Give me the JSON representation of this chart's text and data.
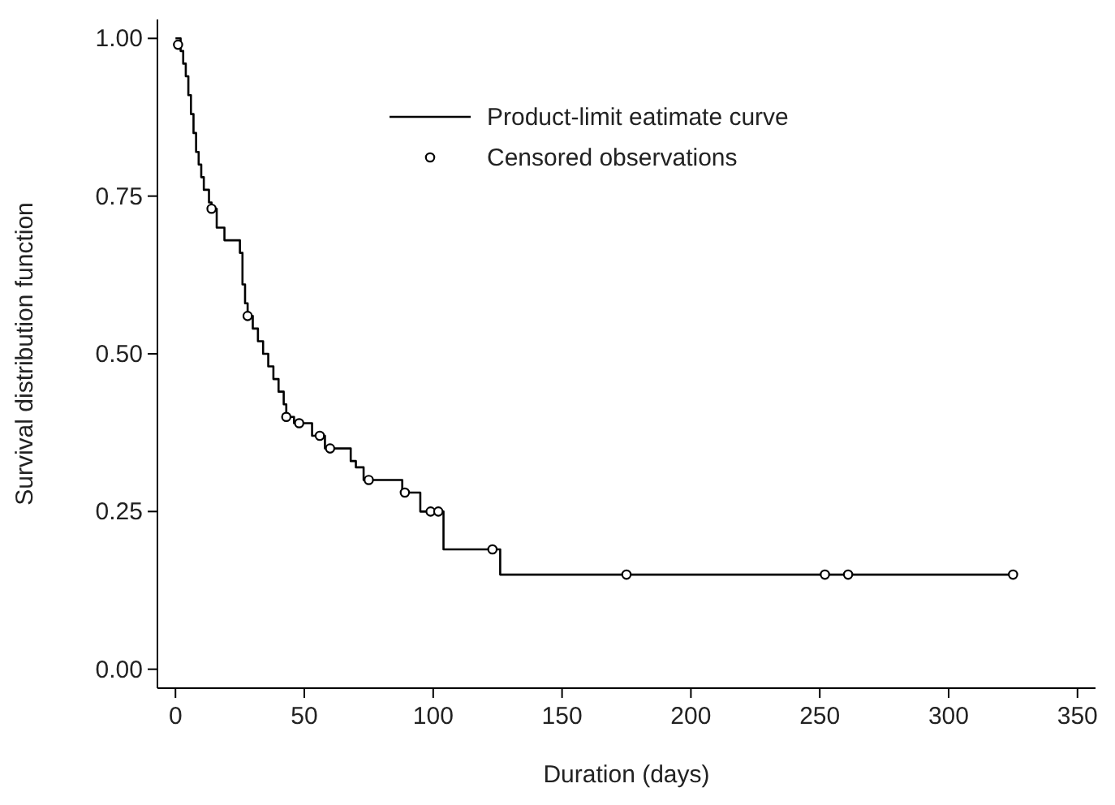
{
  "chart_data": {
    "type": "step",
    "xlabel": "Duration (days)",
    "ylabel": "Survival distribution function",
    "xlim": [
      -7,
      357
    ],
    "ylim": [
      -0.03,
      1.03
    ],
    "xticks": [
      0,
      50,
      100,
      150,
      200,
      250,
      300,
      350
    ],
    "yticks": [
      {
        "value": 0,
        "label": "0.00"
      },
      {
        "value": 0.25,
        "label": "0.25"
      },
      {
        "value": 0.5,
        "label": "0.50"
      },
      {
        "value": 0.75,
        "label": "0.75"
      },
      {
        "value": 1,
        "label": "1.00"
      }
    ],
    "legend": "top right",
    "grid": false,
    "series": [
      {
        "name": "Product-limit eatimate curve",
        "color": "#000000",
        "marker": "none",
        "line_style": "solid",
        "x": [
          0,
          2,
          3,
          4,
          5,
          6,
          7,
          8,
          9,
          10,
          11,
          13,
          14,
          16,
          19,
          25,
          26,
          27,
          28,
          30,
          32,
          34,
          36,
          38,
          40,
          42,
          43,
          46,
          53,
          58,
          68,
          70,
          73,
          88,
          95,
          104,
          126,
          325
        ],
        "values": [
          1.0,
          0.98,
          0.96,
          0.94,
          0.91,
          0.88,
          0.85,
          0.82,
          0.8,
          0.78,
          0.76,
          0.74,
          0.73,
          0.7,
          0.68,
          0.66,
          0.61,
          0.58,
          0.56,
          0.54,
          0.52,
          0.5,
          0.48,
          0.46,
          0.44,
          0.42,
          0.4,
          0.39,
          0.37,
          0.35,
          0.33,
          0.32,
          0.3,
          0.28,
          0.25,
          0.19,
          0.15,
          0.15
        ]
      },
      {
        "name": "Censored observations",
        "type": "scatter",
        "color": "#000000",
        "marker": "circle",
        "x": [
          1,
          14,
          28,
          43,
          48,
          56,
          60,
          75,
          89,
          99,
          102,
          123,
          175,
          252,
          261,
          325
        ],
        "values": [
          0.99,
          0.73,
          0.56,
          0.4,
          0.39,
          0.37,
          0.35,
          0.3,
          0.28,
          0.25,
          0.25,
          0.19,
          0.15,
          0.15,
          0.15,
          0.15
        ]
      }
    ]
  }
}
